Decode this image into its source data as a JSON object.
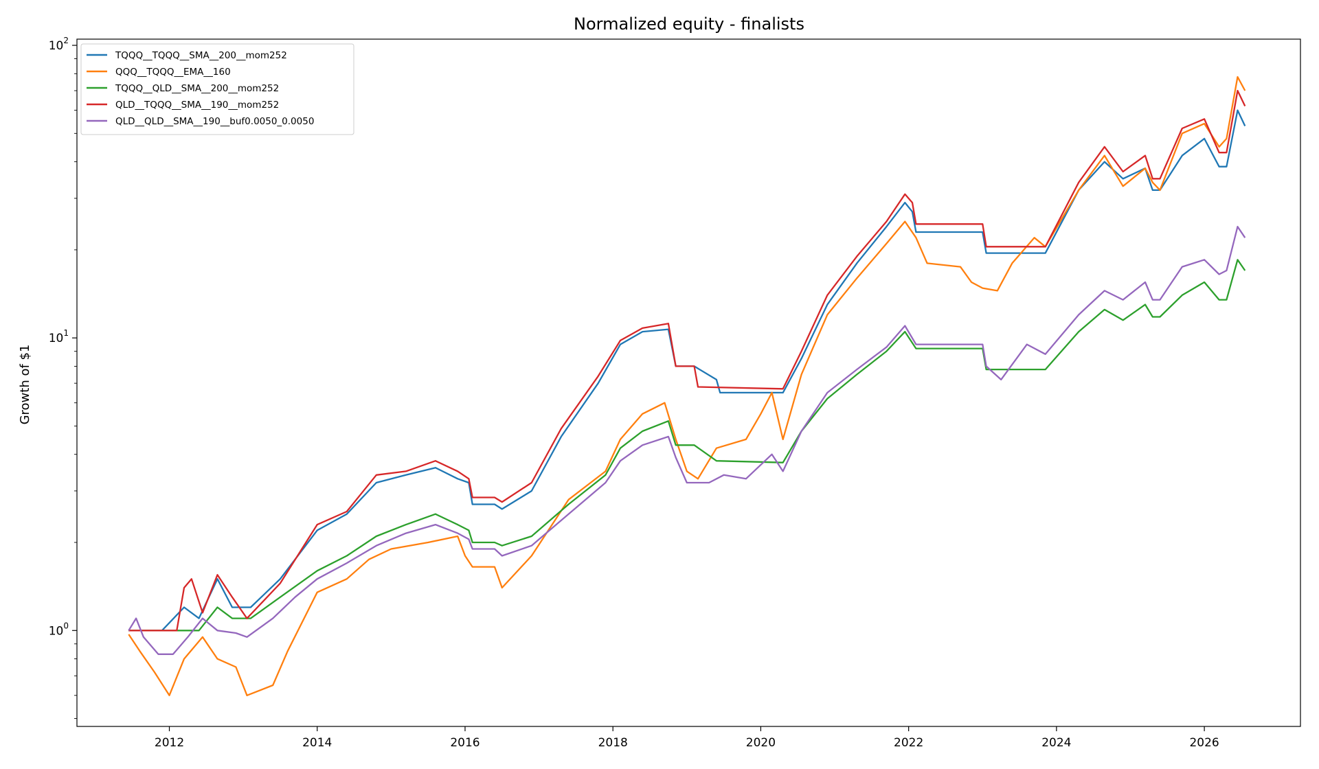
{
  "chart_data": {
    "type": "line",
    "title": "Normalized equity - finalists",
    "xlabel": "",
    "ylabel": "Growth of $1",
    "y_scale": "log",
    "ylim": [
      0.47,
      105
    ],
    "xlim": [
      2010.75,
      2027.3
    ],
    "x_ticks": [
      2012,
      2014,
      2016,
      2018,
      2020,
      2022,
      2024,
      2026
    ],
    "x_tick_labels": [
      "2012",
      "2014",
      "2016",
      "2018",
      "2020",
      "2022",
      "2024",
      "2026"
    ],
    "y_ticks": [
      1,
      10,
      100
    ],
    "y_tick_labels": [
      {
        "base": "10",
        "exp": "0"
      },
      {
        "base": "10",
        "exp": "1"
      },
      {
        "base": "10",
        "exp": "2"
      }
    ],
    "grid": false,
    "legend_position": "upper-left",
    "series": [
      {
        "name": "TQQQ__TQQQ__SMA__200__mom252",
        "color": "#1f77b4",
        "points": [
          [
            2011.45,
            1.0
          ],
          [
            2011.9,
            1.0
          ],
          [
            2012.2,
            1.2
          ],
          [
            2012.4,
            1.1
          ],
          [
            2012.65,
            1.5
          ],
          [
            2012.85,
            1.2
          ],
          [
            2013.1,
            1.2
          ],
          [
            2013.5,
            1.5
          ],
          [
            2014.0,
            2.2
          ],
          [
            2014.4,
            2.5
          ],
          [
            2014.8,
            3.2
          ],
          [
            2015.2,
            3.4
          ],
          [
            2015.6,
            3.6
          ],
          [
            2015.9,
            3.3
          ],
          [
            2016.05,
            3.2
          ],
          [
            2016.1,
            2.7
          ],
          [
            2016.4,
            2.7
          ],
          [
            2016.5,
            2.6
          ],
          [
            2016.9,
            3.0
          ],
          [
            2017.3,
            4.6
          ],
          [
            2017.8,
            7.0
          ],
          [
            2018.1,
            9.5
          ],
          [
            2018.4,
            10.5
          ],
          [
            2018.75,
            10.7
          ],
          [
            2018.85,
            8.0
          ],
          [
            2019.1,
            8.0
          ],
          [
            2019.4,
            7.2
          ],
          [
            2019.45,
            6.5
          ],
          [
            2020.3,
            6.5
          ],
          [
            2020.55,
            8.5
          ],
          [
            2020.9,
            13
          ],
          [
            2021.3,
            18
          ],
          [
            2021.7,
            24
          ],
          [
            2021.95,
            29
          ],
          [
            2022.05,
            27
          ],
          [
            2022.1,
            23
          ],
          [
            2023.0,
            23
          ],
          [
            2023.05,
            19.5
          ],
          [
            2023.85,
            19.5
          ],
          [
            2024.3,
            32
          ],
          [
            2024.65,
            40
          ],
          [
            2024.9,
            35
          ],
          [
            2025.2,
            38
          ],
          [
            2025.3,
            32
          ],
          [
            2025.4,
            32
          ],
          [
            2025.7,
            42
          ],
          [
            2026.0,
            48
          ],
          [
            2026.2,
            38.5
          ],
          [
            2026.3,
            38.5
          ],
          [
            2026.45,
            60
          ],
          [
            2026.55,
            53
          ]
        ]
      },
      {
        "name": "QQQ__TQQQ__EMA__160",
        "color": "#ff7f0e",
        "points": [
          [
            2011.45,
            0.97
          ],
          [
            2011.6,
            0.85
          ],
          [
            2011.8,
            0.72
          ],
          [
            2012.0,
            0.6
          ],
          [
            2012.2,
            0.8
          ],
          [
            2012.45,
            0.95
          ],
          [
            2012.65,
            0.8
          ],
          [
            2012.9,
            0.75
          ],
          [
            2013.05,
            0.6
          ],
          [
            2013.4,
            0.65
          ],
          [
            2013.6,
            0.85
          ],
          [
            2014.0,
            1.35
          ],
          [
            2014.4,
            1.5
          ],
          [
            2014.7,
            1.75
          ],
          [
            2015.0,
            1.9
          ],
          [
            2015.5,
            2.0
          ],
          [
            2015.9,
            2.1
          ],
          [
            2016.0,
            1.8
          ],
          [
            2016.1,
            1.65
          ],
          [
            2016.4,
            1.65
          ],
          [
            2016.5,
            1.4
          ],
          [
            2016.9,
            1.8
          ],
          [
            2017.4,
            2.8
          ],
          [
            2017.9,
            3.5
          ],
          [
            2018.1,
            4.5
          ],
          [
            2018.4,
            5.5
          ],
          [
            2018.7,
            6.0
          ],
          [
            2018.85,
            4.5
          ],
          [
            2019.0,
            3.5
          ],
          [
            2019.15,
            3.3
          ],
          [
            2019.4,
            4.2
          ],
          [
            2019.8,
            4.5
          ],
          [
            2020.0,
            5.5
          ],
          [
            2020.15,
            6.5
          ],
          [
            2020.3,
            4.5
          ],
          [
            2020.55,
            7.5
          ],
          [
            2020.9,
            12
          ],
          [
            2021.3,
            16
          ],
          [
            2021.7,
            21
          ],
          [
            2021.95,
            25
          ],
          [
            2022.1,
            22
          ],
          [
            2022.25,
            18
          ],
          [
            2022.7,
            17.5
          ],
          [
            2022.85,
            15.5
          ],
          [
            2023.0,
            14.8
          ],
          [
            2023.2,
            14.5
          ],
          [
            2023.4,
            18
          ],
          [
            2023.7,
            22
          ],
          [
            2023.85,
            20.5
          ],
          [
            2024.3,
            32
          ],
          [
            2024.65,
            42
          ],
          [
            2024.9,
            33
          ],
          [
            2025.2,
            38
          ],
          [
            2025.3,
            34
          ],
          [
            2025.4,
            32
          ],
          [
            2025.7,
            50
          ],
          [
            2026.0,
            54
          ],
          [
            2026.2,
            45
          ],
          [
            2026.3,
            48
          ],
          [
            2026.45,
            78
          ],
          [
            2026.55,
            70
          ]
        ]
      },
      {
        "name": "TQQQ__QLD__SMA__200__mom252",
        "color": "#2ca02c",
        "points": [
          [
            2011.45,
            1.0
          ],
          [
            2012.4,
            1.0
          ],
          [
            2012.65,
            1.2
          ],
          [
            2012.85,
            1.1
          ],
          [
            2013.1,
            1.1
          ],
          [
            2013.5,
            1.3
          ],
          [
            2014.0,
            1.6
          ],
          [
            2014.4,
            1.8
          ],
          [
            2014.8,
            2.1
          ],
          [
            2015.2,
            2.3
          ],
          [
            2015.6,
            2.5
          ],
          [
            2015.9,
            2.3
          ],
          [
            2016.05,
            2.2
          ],
          [
            2016.1,
            2.0
          ],
          [
            2016.4,
            2.0
          ],
          [
            2016.5,
            1.95
          ],
          [
            2016.9,
            2.1
          ],
          [
            2017.4,
            2.7
          ],
          [
            2017.9,
            3.4
          ],
          [
            2018.1,
            4.2
          ],
          [
            2018.4,
            4.8
          ],
          [
            2018.75,
            5.2
          ],
          [
            2018.85,
            4.3
          ],
          [
            2019.1,
            4.3
          ],
          [
            2019.4,
            3.8
          ],
          [
            2020.3,
            3.75
          ],
          [
            2020.55,
            4.8
          ],
          [
            2020.9,
            6.2
          ],
          [
            2021.3,
            7.5
          ],
          [
            2021.7,
            9.0
          ],
          [
            2021.95,
            10.5
          ],
          [
            2022.1,
            9.2
          ],
          [
            2023.0,
            9.2
          ],
          [
            2023.05,
            7.8
          ],
          [
            2023.85,
            7.8
          ],
          [
            2024.3,
            10.5
          ],
          [
            2024.65,
            12.5
          ],
          [
            2024.9,
            11.5
          ],
          [
            2025.2,
            13.0
          ],
          [
            2025.3,
            11.8
          ],
          [
            2025.4,
            11.8
          ],
          [
            2025.7,
            14.0
          ],
          [
            2026.0,
            15.5
          ],
          [
            2026.2,
            13.5
          ],
          [
            2026.3,
            13.5
          ],
          [
            2026.45,
            18.5
          ],
          [
            2026.55,
            17.0
          ]
        ]
      },
      {
        "name": "QLD__TQQQ__SMA__190__mom252",
        "color": "#d62728",
        "points": [
          [
            2011.45,
            1.0
          ],
          [
            2012.1,
            1.0
          ],
          [
            2012.2,
            1.4
          ],
          [
            2012.3,
            1.5
          ],
          [
            2012.45,
            1.15
          ],
          [
            2012.65,
            1.55
          ],
          [
            2012.85,
            1.3
          ],
          [
            2013.05,
            1.1
          ],
          [
            2013.5,
            1.45
          ],
          [
            2014.0,
            2.3
          ],
          [
            2014.4,
            2.55
          ],
          [
            2014.8,
            3.4
          ],
          [
            2015.2,
            3.5
          ],
          [
            2015.6,
            3.8
          ],
          [
            2015.9,
            3.5
          ],
          [
            2016.05,
            3.3
          ],
          [
            2016.1,
            2.85
          ],
          [
            2016.4,
            2.85
          ],
          [
            2016.5,
            2.75
          ],
          [
            2016.9,
            3.2
          ],
          [
            2017.3,
            4.9
          ],
          [
            2017.8,
            7.4
          ],
          [
            2018.1,
            9.8
          ],
          [
            2018.4,
            10.8
          ],
          [
            2018.75,
            11.2
          ],
          [
            2018.85,
            8.0
          ],
          [
            2019.1,
            8.0
          ],
          [
            2019.15,
            6.8
          ],
          [
            2020.3,
            6.7
          ],
          [
            2020.55,
            9.0
          ],
          [
            2020.9,
            14
          ],
          [
            2021.3,
            19
          ],
          [
            2021.7,
            25
          ],
          [
            2021.95,
            31
          ],
          [
            2022.05,
            29
          ],
          [
            2022.1,
            24.5
          ],
          [
            2023.0,
            24.5
          ],
          [
            2023.05,
            20.5
          ],
          [
            2023.85,
            20.5
          ],
          [
            2024.3,
            34
          ],
          [
            2024.65,
            45
          ],
          [
            2024.9,
            37
          ],
          [
            2025.2,
            42
          ],
          [
            2025.3,
            35
          ],
          [
            2025.4,
            35
          ],
          [
            2025.7,
            52
          ],
          [
            2026.0,
            56
          ],
          [
            2026.2,
            43
          ],
          [
            2026.3,
            43
          ],
          [
            2026.45,
            70
          ],
          [
            2026.55,
            62
          ]
        ]
      },
      {
        "name": "QLD__QLD__SMA__190__buf0.0050_0.0050",
        "color": "#9467bd",
        "points": [
          [
            2011.45,
            1.0
          ],
          [
            2011.55,
            1.1
          ],
          [
            2011.65,
            0.95
          ],
          [
            2011.85,
            0.83
          ],
          [
            2012.05,
            0.83
          ],
          [
            2012.25,
            0.95
          ],
          [
            2012.45,
            1.1
          ],
          [
            2012.65,
            1.0
          ],
          [
            2012.9,
            0.98
          ],
          [
            2013.05,
            0.95
          ],
          [
            2013.4,
            1.1
          ],
          [
            2013.7,
            1.3
          ],
          [
            2014.0,
            1.5
          ],
          [
            2014.4,
            1.7
          ],
          [
            2014.8,
            1.95
          ],
          [
            2015.2,
            2.15
          ],
          [
            2015.6,
            2.3
          ],
          [
            2015.9,
            2.15
          ],
          [
            2016.05,
            2.05
          ],
          [
            2016.1,
            1.9
          ],
          [
            2016.4,
            1.9
          ],
          [
            2016.5,
            1.8
          ],
          [
            2016.9,
            1.95
          ],
          [
            2017.4,
            2.5
          ],
          [
            2017.9,
            3.2
          ],
          [
            2018.1,
            3.8
          ],
          [
            2018.4,
            4.3
          ],
          [
            2018.75,
            4.6
          ],
          [
            2018.85,
            3.9
          ],
          [
            2019.0,
            3.2
          ],
          [
            2019.3,
            3.2
          ],
          [
            2019.5,
            3.4
          ],
          [
            2019.8,
            3.3
          ],
          [
            2020.15,
            4.0
          ],
          [
            2020.3,
            3.5
          ],
          [
            2020.55,
            4.8
          ],
          [
            2020.9,
            6.5
          ],
          [
            2021.3,
            7.8
          ],
          [
            2021.7,
            9.3
          ],
          [
            2021.95,
            11.0
          ],
          [
            2022.1,
            9.5
          ],
          [
            2023.0,
            9.5
          ],
          [
            2023.05,
            8.0
          ],
          [
            2023.25,
            7.2
          ],
          [
            2023.6,
            9.5
          ],
          [
            2023.85,
            8.8
          ],
          [
            2024.3,
            12.0
          ],
          [
            2024.65,
            14.5
          ],
          [
            2024.9,
            13.5
          ],
          [
            2025.2,
            15.5
          ],
          [
            2025.3,
            13.5
          ],
          [
            2025.4,
            13.5
          ],
          [
            2025.7,
            17.5
          ],
          [
            2026.0,
            18.5
          ],
          [
            2026.2,
            16.5
          ],
          [
            2026.3,
            17.0
          ],
          [
            2026.45,
            24.0
          ],
          [
            2026.55,
            22.0
          ]
        ]
      }
    ]
  }
}
